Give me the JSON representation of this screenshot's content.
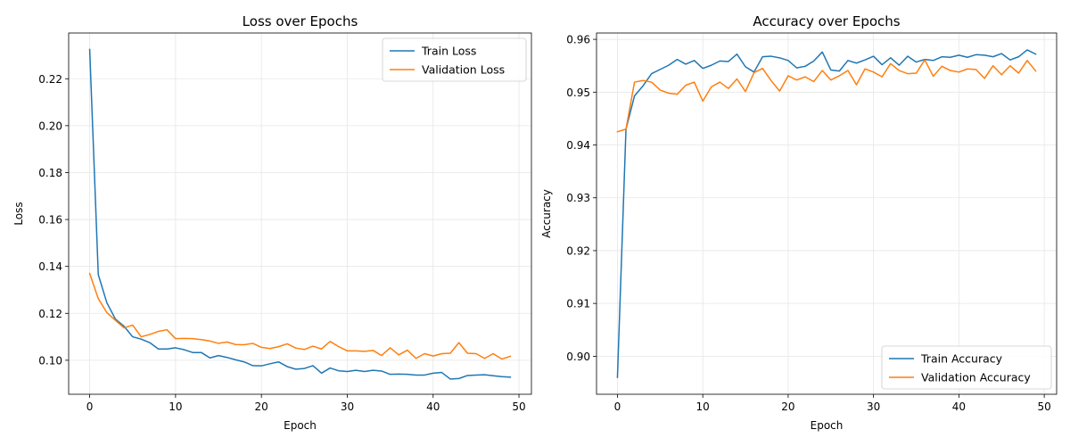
{
  "colors": {
    "train": "#1f77b4",
    "validation": "#ff7f0e",
    "grid": "#e6e6e6"
  },
  "chart_data": [
    {
      "type": "line",
      "title": "Loss over Epochs",
      "xlabel": "Epoch",
      "ylabel": "Loss",
      "xlim": [
        -2.45,
        51.45
      ],
      "ylim": [
        0.0855,
        0.2395
      ],
      "xticks": [
        0,
        10,
        20,
        30,
        40,
        50
      ],
      "yticks": [
        0.1,
        0.12,
        0.14,
        0.16,
        0.18,
        0.2,
        0.22
      ],
      "ytick_labels": [
        "0.10",
        "0.12",
        "0.14",
        "0.16",
        "0.18",
        "0.20",
        "0.22"
      ],
      "grid": true,
      "legend_position": "top-right",
      "x": [
        0,
        1,
        2,
        3,
        4,
        5,
        6,
        7,
        8,
        9,
        10,
        11,
        12,
        13,
        14,
        15,
        16,
        17,
        18,
        19,
        20,
        21,
        22,
        23,
        24,
        25,
        26,
        27,
        28,
        29,
        30,
        31,
        32,
        33,
        34,
        35,
        36,
        37,
        38,
        39,
        40,
        41,
        42,
        43,
        44,
        45,
        46,
        47,
        48,
        49
      ],
      "series": [
        {
          "name": "Train Loss",
          "color_key": "train",
          "values": [
            0.2325,
            0.1365,
            0.1245,
            0.1175,
            0.1145,
            0.11,
            0.109,
            0.1075,
            0.1048,
            0.1048,
            0.1053,
            0.1045,
            0.1033,
            0.1033,
            0.101,
            0.102,
            0.1012,
            0.1002,
            0.0993,
            0.0977,
            0.0976,
            0.0985,
            0.0993,
            0.0973,
            0.0962,
            0.0965,
            0.0977,
            0.0945,
            0.0967,
            0.0955,
            0.0952,
            0.0957,
            0.0952,
            0.0957,
            0.0954,
            0.094,
            0.0941,
            0.094,
            0.0937,
            0.0937,
            0.0945,
            0.0948,
            0.092,
            0.0922,
            0.0935,
            0.0937,
            0.0938,
            0.0934,
            0.093,
            0.0928
          ]
        },
        {
          "name": "Validation Loss",
          "color_key": "validation",
          "values": [
            0.137,
            0.1263,
            0.1203,
            0.117,
            0.1138,
            0.115,
            0.11,
            0.111,
            0.1123,
            0.113,
            0.1092,
            0.1093,
            0.1092,
            0.1088,
            0.1082,
            0.1072,
            0.1078,
            0.1067,
            0.1066,
            0.1072,
            0.1055,
            0.105,
            0.1058,
            0.107,
            0.1052,
            0.1046,
            0.106,
            0.1048,
            0.108,
            0.1058,
            0.104,
            0.104,
            0.1038,
            0.1042,
            0.102,
            0.1053,
            0.1023,
            0.1043,
            0.1008,
            0.1028,
            0.1018,
            0.1028,
            0.103,
            0.1075,
            0.103,
            0.1028,
            0.1008,
            0.1028,
            0.1005,
            0.1017
          ]
        }
      ]
    },
    {
      "type": "line",
      "title": "Accuracy over Epochs",
      "xlabel": "Epoch",
      "ylabel": "Accuracy",
      "xlim": [
        -2.45,
        51.45
      ],
      "ylim": [
        0.8928,
        0.9612
      ],
      "xticks": [
        0,
        10,
        20,
        30,
        40,
        50
      ],
      "yticks": [
        0.9,
        0.91,
        0.92,
        0.93,
        0.94,
        0.95,
        0.96
      ],
      "ytick_labels": [
        "0.90",
        "0.91",
        "0.92",
        "0.93",
        "0.94",
        "0.95",
        "0.96"
      ],
      "grid": true,
      "legend_position": "bottom-right",
      "x": [
        0,
        1,
        2,
        3,
        4,
        5,
        6,
        7,
        8,
        9,
        10,
        11,
        12,
        13,
        14,
        15,
        16,
        17,
        18,
        19,
        20,
        21,
        22,
        23,
        24,
        25,
        26,
        27,
        28,
        29,
        30,
        31,
        32,
        33,
        34,
        35,
        36,
        37,
        38,
        39,
        40,
        41,
        42,
        43,
        44,
        45,
        46,
        47,
        48,
        49
      ],
      "series": [
        {
          "name": "Train Accuracy",
          "color_key": "train",
          "values": [
            0.896,
            0.943,
            0.9493,
            0.9512,
            0.9535,
            0.9543,
            0.9551,
            0.9562,
            0.9553,
            0.956,
            0.9545,
            0.9551,
            0.9559,
            0.9558,
            0.9572,
            0.9548,
            0.9538,
            0.9567,
            0.9568,
            0.9565,
            0.956,
            0.9546,
            0.9549,
            0.9559,
            0.9576,
            0.9542,
            0.954,
            0.956,
            0.9555,
            0.9561,
            0.9568,
            0.9552,
            0.9565,
            0.9551,
            0.9568,
            0.9557,
            0.9562,
            0.956,
            0.9567,
            0.9566,
            0.957,
            0.9566,
            0.9571,
            0.957,
            0.9567,
            0.9573,
            0.9561,
            0.9567,
            0.958,
            0.9572
          ]
        },
        {
          "name": "Validation Accuracy",
          "color_key": "validation",
          "values": [
            0.9425,
            0.943,
            0.9519,
            0.9522,
            0.9519,
            0.9504,
            0.9498,
            0.9496,
            0.9513,
            0.9519,
            0.9483,
            0.951,
            0.9519,
            0.9507,
            0.9525,
            0.9501,
            0.9537,
            0.9545,
            0.9522,
            0.9502,
            0.9531,
            0.9523,
            0.9529,
            0.952,
            0.9541,
            0.9523,
            0.9531,
            0.9541,
            0.9514,
            0.9544,
            0.9538,
            0.9529,
            0.9554,
            0.9541,
            0.9535,
            0.9536,
            0.9561,
            0.953,
            0.9549,
            0.9541,
            0.9538,
            0.9544,
            0.9543,
            0.9526,
            0.955,
            0.9533,
            0.955,
            0.9536,
            0.956,
            0.954
          ]
        }
      ]
    }
  ]
}
